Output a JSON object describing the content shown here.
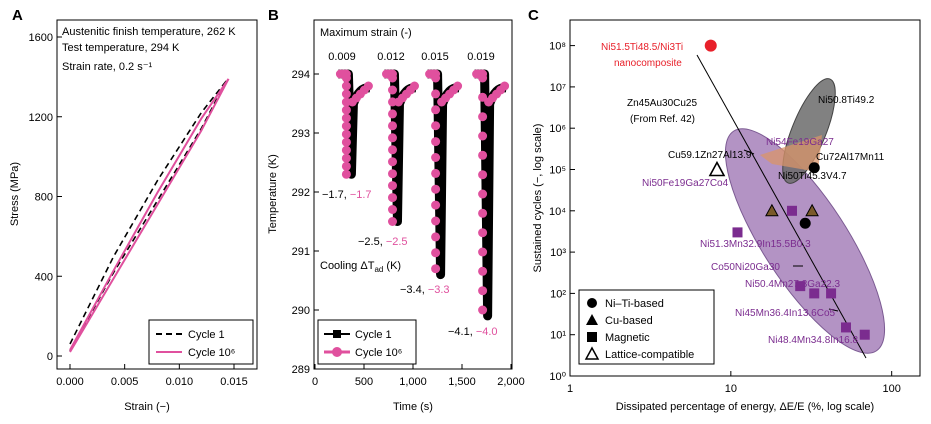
{
  "chart_data": [
    {
      "panel": "A",
      "type": "line",
      "xlabel": "Strain (−)",
      "ylabel": "Stress (MPa)",
      "xlim": [
        0.0,
        0.015
      ],
      "ylim": [
        0,
        1600
      ],
      "xticks": [
        "0.000",
        "0.005",
        "0.010",
        "0.015"
      ],
      "yticks": [
        "0",
        "400",
        "800",
        "1200",
        "1600"
      ],
      "annotations": [
        "Austenitic finish temperature, 262 K",
        "Test temperature, 294 K",
        "Strain rate, 0.2 s⁻¹"
      ],
      "series": [
        {
          "name": "Cycle 1",
          "style": "dashed",
          "color": "#000000",
          "loading": [
            [
              0.0,
              60
            ],
            [
              0.004,
              500
            ],
            [
              0.008,
              880
            ],
            [
              0.012,
              1220
            ],
            [
              0.0143,
              1380
            ]
          ],
          "unloading": [
            [
              0.0143,
              1380
            ],
            [
              0.012,
              1140
            ],
            [
              0.008,
              780
            ],
            [
              0.004,
              420
            ],
            [
              0.0,
              25
            ]
          ]
        },
        {
          "name": "Cycle 10⁶",
          "style": "solid",
          "color": "#e0509e",
          "loading": [
            [
              0.0,
              30
            ],
            [
              0.004,
              430
            ],
            [
              0.008,
              820
            ],
            [
              0.012,
              1190
            ],
            [
              0.0145,
              1390
            ]
          ],
          "unloading": [
            [
              0.0145,
              1390
            ],
            [
              0.012,
              1130
            ],
            [
              0.008,
              760
            ],
            [
              0.004,
              390
            ],
            [
              0.0,
              20
            ]
          ]
        }
      ]
    },
    {
      "panel": "B",
      "type": "line",
      "xlabel": "Time (s)",
      "ylabel": "Temperature (K)",
      "xlim": [
        0,
        2000
      ],
      "ylim": [
        289,
        294.5
      ],
      "xticks": [
        "0",
        "500",
        "1,000",
        "1,500",
        "2,000"
      ],
      "yticks": [
        "289",
        "290",
        "291",
        "292",
        "293",
        "294"
      ],
      "top_label": "Maximum strain (-)",
      "strains": [
        "0.009",
        "0.012",
        "0.015",
        "0.019"
      ],
      "cooling_label": "Cooling ΔT_ad (K)",
      "cooling_cycle1": [
        "−1.7,",
        "−2.5,",
        "−3.4,",
        "−4.1,"
      ],
      "cooling_cycle1e6": [
        "−1.7",
        "−2.5",
        "−3.3",
        "−4.0"
      ],
      "drops": [
        {
          "t_start": 300,
          "min_cycle1": 292.3,
          "min_cycle1e6": 292.3
        },
        {
          "t_start": 770,
          "min_cycle1": 291.5,
          "min_cycle1e6": 291.5
        },
        {
          "t_start": 1210,
          "min_cycle1": 290.6,
          "min_cycle1e6": 290.7
        },
        {
          "t_start": 1690,
          "min_cycle1": 289.9,
          "min_cycle1e6": 290.0
        }
      ],
      "series": [
        {
          "name": "Cycle 1",
          "color": "#000000"
        },
        {
          "name": "Cycle 10⁶",
          "color": "#e0509e"
        }
      ]
    },
    {
      "panel": "C",
      "type": "scatter",
      "xlabel": "Dissipated percentage of energy, ΔE/E (%, log scale)",
      "ylabel": "Sustained cycles (−, log scale)",
      "xscale": "log",
      "yscale": "log",
      "xlim": [
        1,
        150
      ],
      "ylim": [
        1,
        300000000.0
      ],
      "xticks": [
        "1",
        "10",
        "100"
      ],
      "yticks": [
        "10⁰",
        "10¹",
        "10²",
        "10³",
        "10⁴",
        "10⁵",
        "10⁶",
        "10⁷",
        "10⁸"
      ],
      "legend": [
        "Ni–Ti-based",
        "Cu-based",
        "Magnetic",
        "Lattice-compatible"
      ],
      "points": [
        {
          "label": "Ni51.5Ti48.5/Ni3Ti nanocomposite",
          "category": "highlight",
          "x": 7.5,
          "y": 100000000.0
        },
        {
          "label": "Zn45Au30Cu25 (From Ref. 42)",
          "category": "lattice",
          "x": 8.2,
          "y": 100000.0
        },
        {
          "label": "Ni50.8Ti49.2",
          "category": "niti",
          "x": 33,
          "y": 110000.0
        },
        {
          "label": "Ni54Fe19Ga27",
          "category": "magnetic",
          "x": 24,
          "y": 10000.0
        },
        {
          "label": "Cu59.1Zn27Al13.9",
          "category": "cu",
          "x": 18,
          "y": 10000.0
        },
        {
          "label": "Cu72Al17Mn11",
          "category": "cu",
          "x": 32,
          "y": 10000.0
        },
        {
          "label": "Ni50Ti45.3V4.7",
          "category": "niti",
          "x": 29,
          "y": 5000.0
        },
        {
          "label": "Ni50Fe19Ga27Co4",
          "category": "magnetic",
          "x": 11,
          "y": 3000.0
        },
        {
          "label": "Ni51.3Mn32.9In15.5B0.3",
          "category": "magnetic",
          "x": 27,
          "y": 150
        },
        {
          "label": "Co50Ni20Ga30",
          "category": "magnetic",
          "x": 33,
          "y": 100
        },
        {
          "label": "Ni50.4Mn27.3Ga22.3",
          "category": "magnetic",
          "x": 42,
          "y": 100
        },
        {
          "label": "Ni45Mn36.4In13.6Co5",
          "category": "magnetic",
          "x": 52,
          "y": 15
        },
        {
          "label": "Ni48.4Mn34.8In16.8",
          "category": "magnetic",
          "x": 68,
          "y": 10
        }
      ]
    }
  ],
  "text": {
    "a_panel": "A",
    "b_panel": "B",
    "c_panel": "C",
    "a_ann1": "Austenitic finish temperature, 262 K",
    "a_ann2": "Test temperature, 294 K",
    "a_ann3": "Strain rate, 0.2 s⁻¹",
    "a_leg1": "Cycle 1",
    "a_leg2": "Cycle 10⁶",
    "b_max": "Maximum strain (-)",
    "b_cool": "Cooling ΔT",
    "b_cool_sub": "ad",
    "b_cool_unit": " (K)",
    "b_leg1": "Cycle 1",
    "b_leg2": "Cycle 10⁶",
    "c_red1": "Ni51.5Ti48.5/Ni3Ti",
    "c_red2": "nanocomposite",
    "c_zn": "Zn45Au30Cu25",
    "c_ref": "(From Ref. 42)",
    "c_niti1": "Ni50.8Ti49.2",
    "c_nifega": "Ni54Fe19Ga27",
    "c_cuzn": "Cu59.1Zn27Al13.9",
    "c_cual": "Cu72Al17Mn11",
    "c_nitiv": "Ni50Ti45.3V4.7",
    "c_nifegaco": "Ni50Fe19Ga27Co4",
    "c_nimnin": "Ni51.3Mn32.9In15.5B0.3",
    "c_coni": "Co50Ni20Ga30",
    "c_nimnga": "Ni50.4Mn27.3Ga22.3",
    "c_nimninco": "Ni45Mn36.4In13.6Co5",
    "c_nimnin2": "Ni48.4Mn34.8In16.8"
  }
}
